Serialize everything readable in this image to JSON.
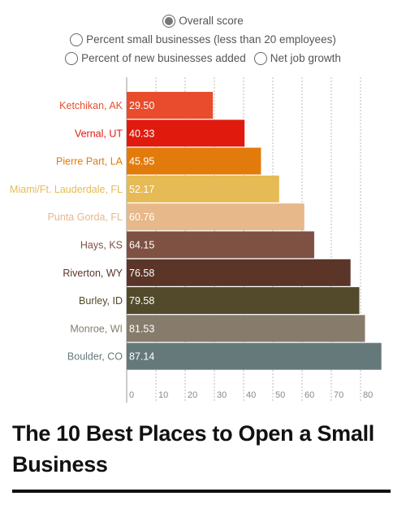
{
  "options": {
    "items": [
      {
        "label": "Overall score",
        "checked": true
      },
      {
        "label": "Percent small businesses (less than 20 employees)",
        "checked": false
      },
      {
        "label": "Percent of new businesses added",
        "checked": false
      },
      {
        "label": "Net job growth",
        "checked": false
      }
    ]
  },
  "title": "The 10 Best Places to Open a Small Business",
  "chart_data": {
    "type": "bar",
    "orientation": "horizontal",
    "categories": [
      "Ketchikan, AK",
      "Vernal, UT",
      "Pierre Part, LA",
      "Miami/Ft. Lauderdale, FL",
      "Punta Gorda, FL",
      "Hays, KS",
      "Riverton, WY",
      "Burley, ID",
      "Monroe, WI",
      "Boulder, CO"
    ],
    "values": [
      29.5,
      40.33,
      45.95,
      52.17,
      60.76,
      64.15,
      76.58,
      79.58,
      81.53,
      87.14
    ],
    "value_labels": [
      "29.50",
      "40.33",
      "45.95",
      "52.17",
      "60.76",
      "64.15",
      "76.58",
      "79.58",
      "81.53",
      "87.14"
    ],
    "colors": [
      "#e84c2d",
      "#e01b0e",
      "#e27b0b",
      "#e6bb55",
      "#e7b88a",
      "#7f5142",
      "#5a3528",
      "#524a2b",
      "#877c6b",
      "#65797a"
    ],
    "xticks": [
      "0",
      "10",
      "20",
      "30",
      "40",
      "50",
      "60",
      "70",
      "80"
    ],
    "xlim": [
      0,
      85
    ],
    "grid": true
  }
}
